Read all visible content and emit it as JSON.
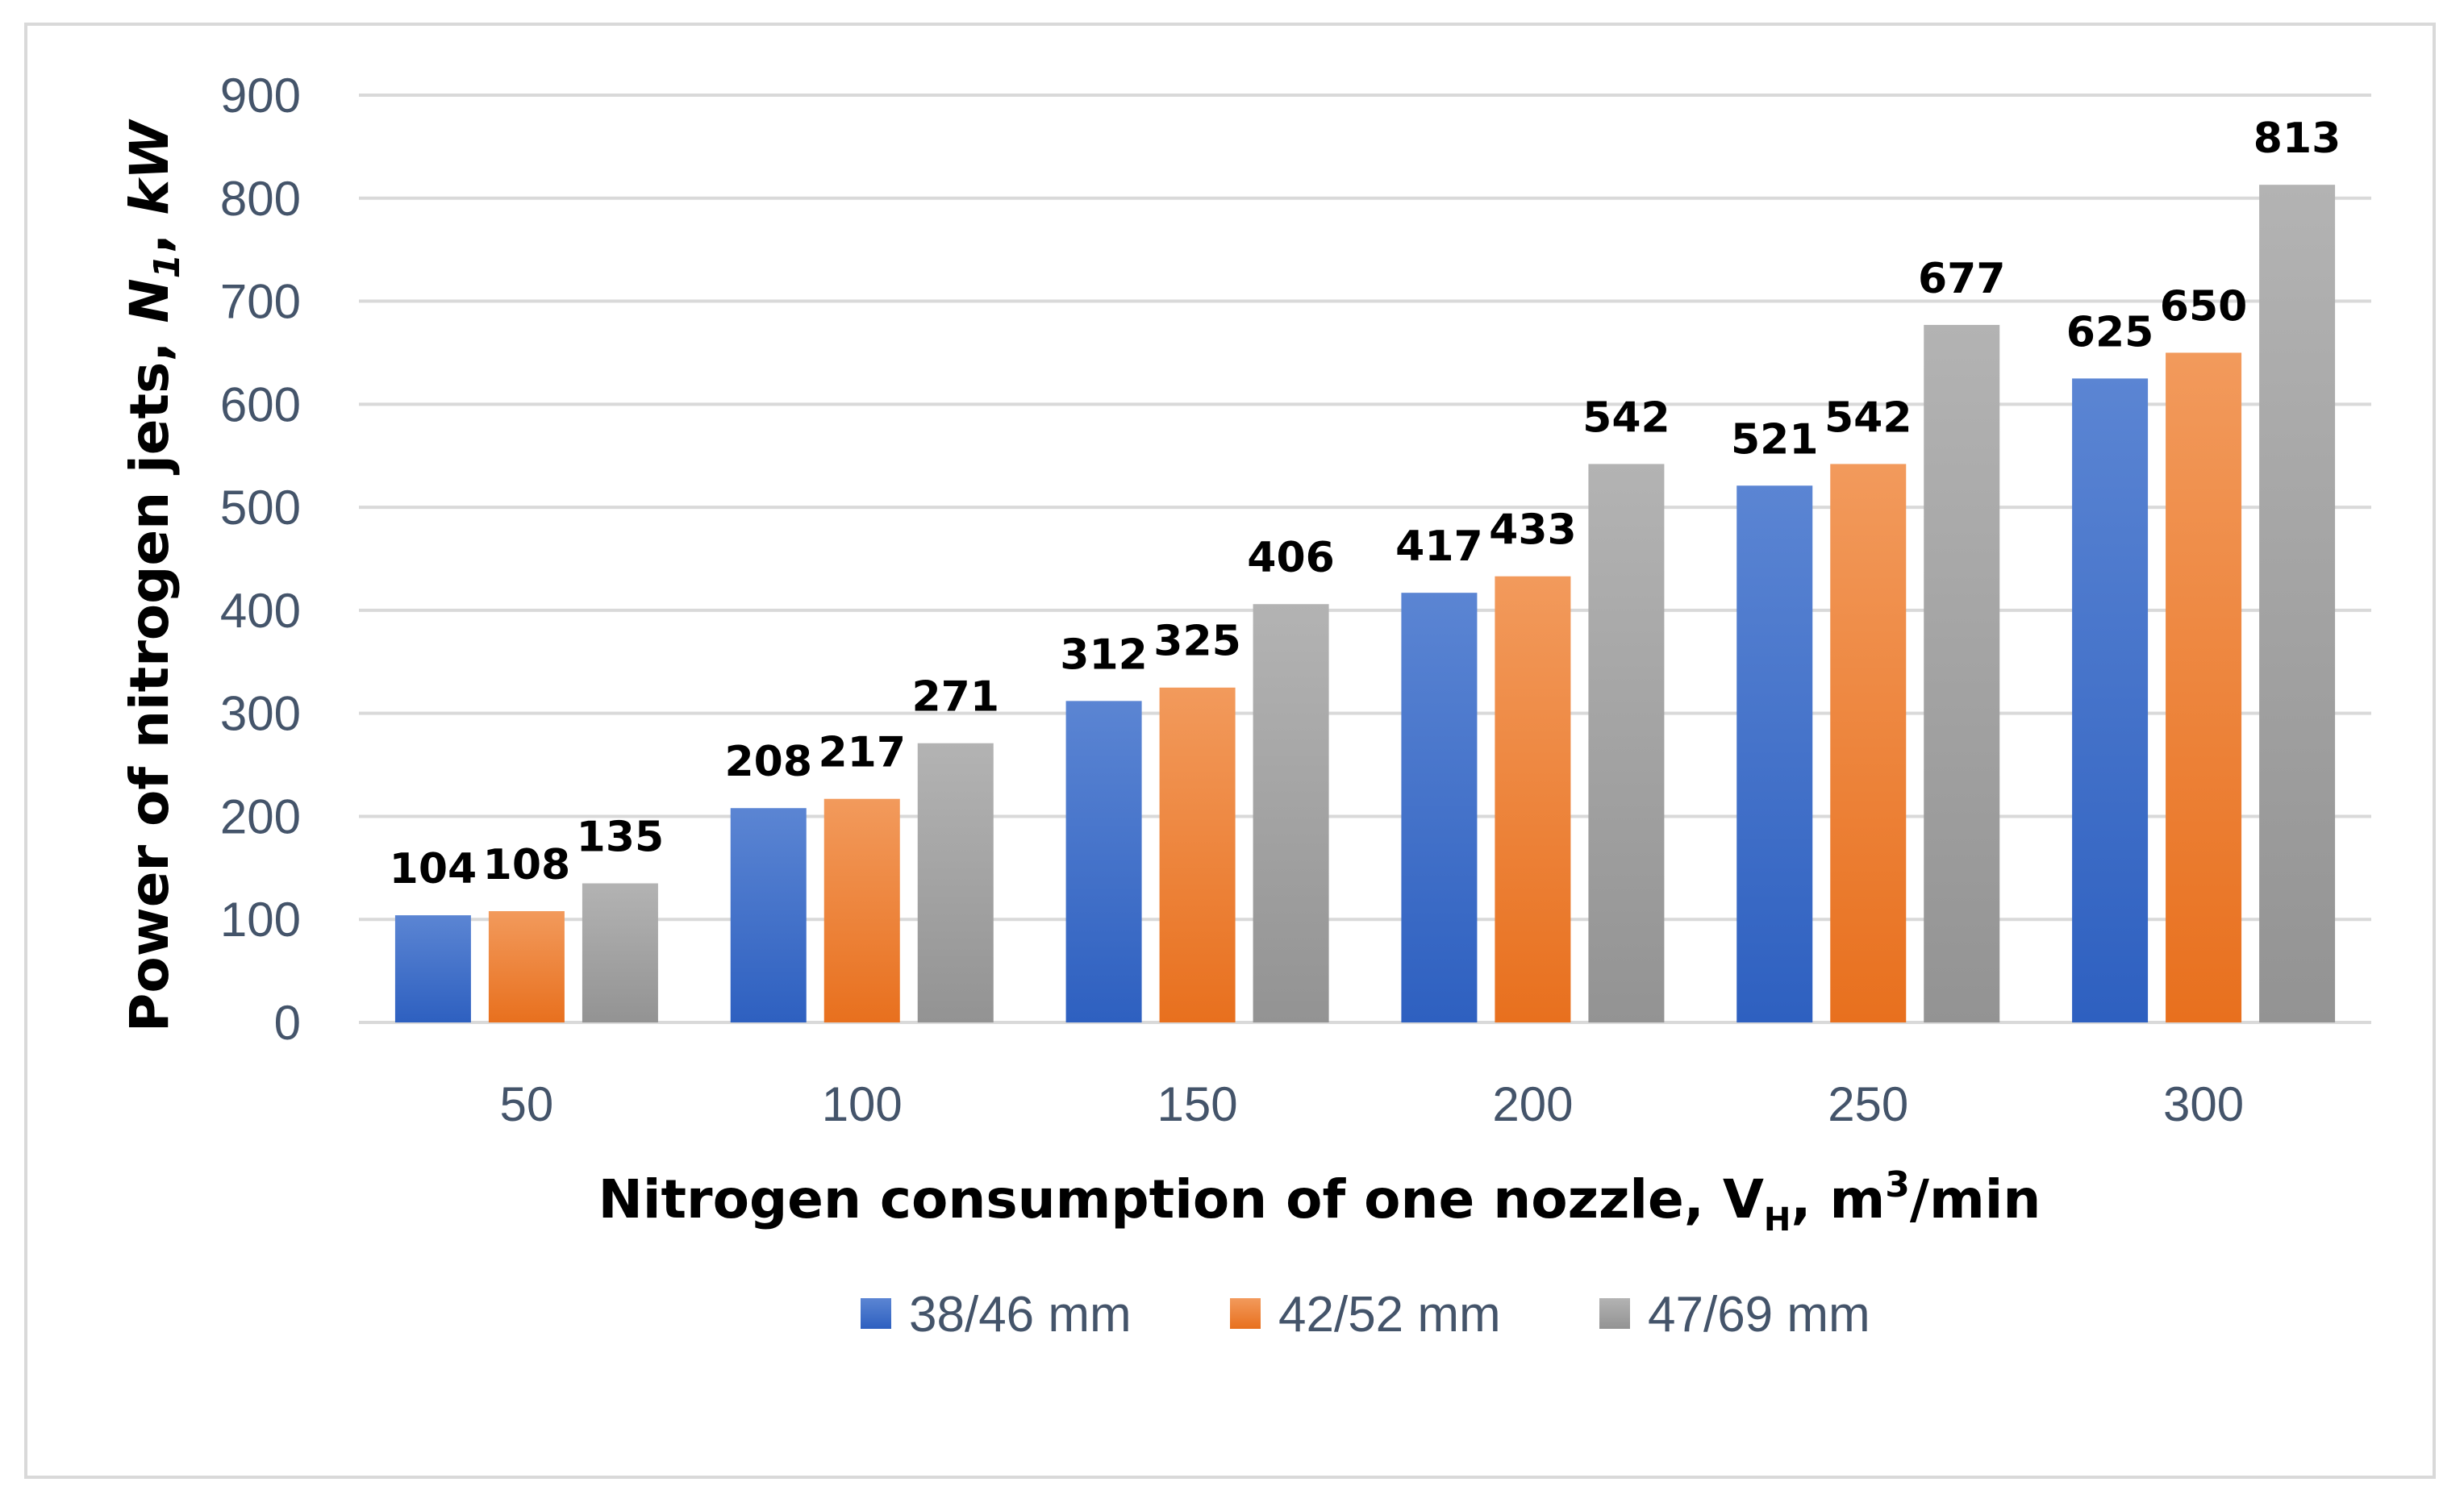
{
  "chart_data": {
    "type": "bar",
    "categories": [
      "50",
      "100",
      "150",
      "200",
      "250",
      "300"
    ],
    "series": [
      {
        "name": "38/46 mm",
        "values": [
          104,
          208,
          312,
          417,
          521,
          625
        ],
        "color_top": "#5b85d3",
        "color_bottom": "#2e60c0"
      },
      {
        "name": "42/52 mm",
        "values": [
          108,
          217,
          325,
          433,
          542,
          650
        ],
        "color_top": "#f29a5c",
        "color_bottom": "#e8701e"
      },
      {
        "name": "47/69 mm",
        "values": [
          135,
          271,
          406,
          542,
          677,
          813
        ],
        "color_top": "#b3b3b3",
        "color_bottom": "#939393"
      }
    ],
    "ylim": [
      0,
      900
    ],
    "yticks": [
      "0",
      "100",
      "200",
      "300",
      "400",
      "500",
      "600",
      "700",
      "800",
      "900"
    ],
    "ylabel": {
      "part1": "Power of nitrogen jets, ",
      "symbol": "N",
      "subscript": "1",
      "part2": ", ",
      "unit": "kW"
    },
    "xlabel": {
      "part1": "Nitrogen consumption of one nozzle, V",
      "subscript": "H",
      "part2": ", m",
      "superscript": "3",
      "part3": "/min"
    },
    "grid": true,
    "legend_position": "bottom"
  },
  "colors": {
    "grid": "#d9d9d9",
    "tick": "#44546a",
    "border": "#d9d9d9"
  }
}
